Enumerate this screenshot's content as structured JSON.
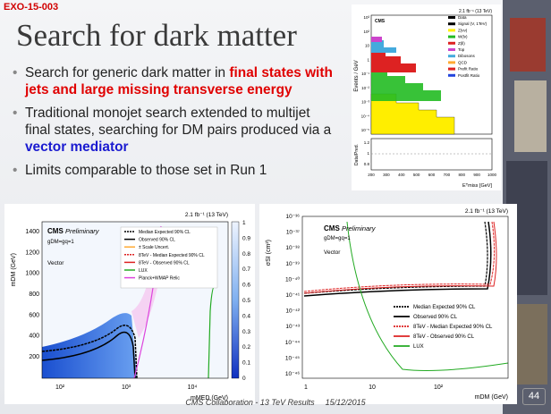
{
  "header": {
    "tag": "EXO-15-003",
    "title": "Search for dark matter"
  },
  "bullets": [
    [
      {
        "text": "Search for generic dark matter in ",
        "style": "plain"
      },
      {
        "text": "final states with jets and large missing transverse energy",
        "style": "red"
      }
    ],
    [
      {
        "text": "Traditional monojet search extended to multijet final states, searching for DM pairs produced via a ",
        "style": "plain"
      },
      {
        "text": "vector mediator",
        "style": "blue"
      }
    ],
    [
      {
        "text": "Limits comparable to those set in Run 1",
        "style": "plain"
      }
    ]
  ],
  "plots": {
    "met": {
      "lumi": "2.1 fb⁻¹ (13 TeV)",
      "experiment": "CMS",
      "y_label": "Events / GeV",
      "ratio_label": "Data/Pred.",
      "x_label": "Eᵀmiss [GeV]",
      "yticks": [
        "10³",
        "10²",
        "10",
        "1",
        "10⁻¹",
        "10⁻²",
        "10⁻³",
        "10⁻⁴",
        "10⁻⁵"
      ],
      "ratio_ticks": [
        "1.2",
        "1",
        "0.8"
      ],
      "xticks": [
        "200",
        "300",
        "400",
        "500",
        "600",
        "700",
        "800",
        "900",
        "1000"
      ],
      "legend": [
        {
          "name": "Data",
          "color": "#000000"
        },
        {
          "name": "Signal (V, 1TeV)",
          "color": "#000000"
        },
        {
          "name": "Z(νν)",
          "color": "#ffee00"
        },
        {
          "name": "W(lν)",
          "color": "#22bb22"
        },
        {
          "name": "Z(ll)",
          "color": "#dd2222"
        },
        {
          "name": "Top",
          "color": "#cc44cc"
        },
        {
          "name": "Dibosons",
          "color": "#44aadd"
        },
        {
          "name": "QCD",
          "color": "#ffaa33"
        },
        {
          "name": "Prefit Ratio",
          "color": "#dd2222"
        },
        {
          "name": "Postfit Ratio",
          "color": "#2244dd"
        }
      ]
    },
    "mediator": {
      "lumi": "2.1 fb⁻¹ (13 TeV)",
      "experiment": "CMS",
      "status": "Preliminary",
      "coupling": "gDM=gq=1",
      "model": "Vector",
      "y_label": "mDM (GeV)",
      "x_label": "mMED (GeV)",
      "yticks": [
        "1400",
        "1200",
        "1000",
        "800",
        "600",
        "400",
        "200"
      ],
      "xticks": [
        "10²",
        "10³",
        "10⁴"
      ],
      "zticks": [
        "1",
        "0.9",
        "0.8",
        "0.7",
        "0.6",
        "0.5",
        "0.4",
        "0.3",
        "0.2",
        "0.1",
        "0"
      ],
      "legend": [
        {
          "name": "Median Expected 90% CL",
          "color": "#000000"
        },
        {
          "name": "Observed 90% CL",
          "color": "#000000"
        },
        {
          "name": "± Scale Uncert.",
          "color": "#ffaa33"
        },
        {
          "name": "8TeV - Median Expected 90% CL",
          "color": "#dd2222"
        },
        {
          "name": "8TeV - Observed 90% CL",
          "color": "#dd2222"
        },
        {
          "name": "LUX",
          "color": "#22aa22"
        },
        {
          "name": "Planck+WMAP Relic",
          "color": "#dd44dd"
        }
      ]
    },
    "direct": {
      "lumi": "2.1 fb⁻¹ (13 TeV)",
      "experiment": "CMS",
      "status": "Preliminary",
      "coupling": "gDM=gq=1",
      "model": "Vector",
      "y_label": "σSI (cm²)",
      "x_label": "mDM (GeV)",
      "yticks": [
        "10⁻³⁶",
        "10⁻³⁷",
        "10⁻³⁸",
        "10⁻³⁹",
        "10⁻⁴⁰",
        "10⁻⁴¹",
        "10⁻⁴²",
        "10⁻⁴³",
        "10⁻⁴⁴",
        "10⁻⁴⁵",
        "10⁻⁴⁶"
      ],
      "xticks": [
        "1",
        "10",
        "10²"
      ],
      "legend": [
        {
          "name": "Median Expected 90% CL",
          "color": "#000000"
        },
        {
          "name": "Observed 90% CL",
          "color": "#000000"
        },
        {
          "name": "8TeV - Median Expected 90% CL",
          "color": "#dd2222"
        },
        {
          "name": "8TeV - Observed 90% CL",
          "color": "#dd2222"
        },
        {
          "name": "LUX",
          "color": "#22aa22"
        }
      ]
    }
  },
  "footer": {
    "text": "CMS Collaboration - 13 TeV Results",
    "date": "15/12/2015",
    "page": "44"
  }
}
